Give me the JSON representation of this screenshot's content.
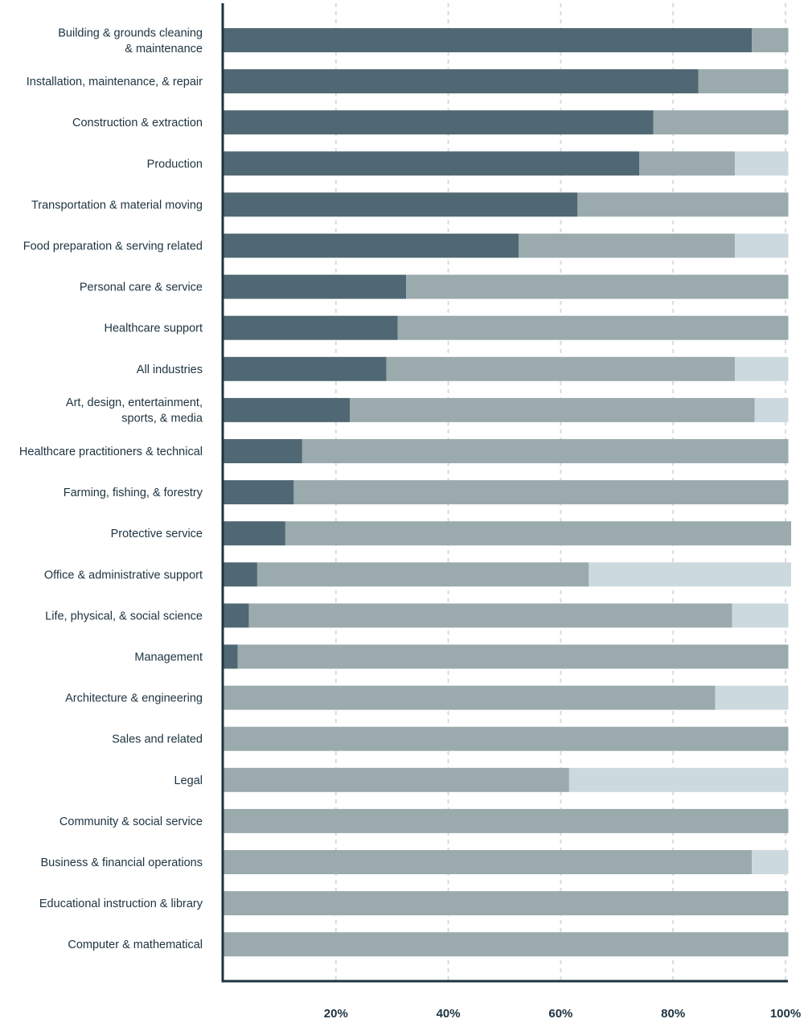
{
  "chart_data": {
    "type": "bar",
    "orientation": "horizontal",
    "stacked": true,
    "title": "",
    "xlabel": "",
    "ylabel": "",
    "xlim": [
      0,
      100
    ],
    "x_ticks": [
      20,
      40,
      60,
      80,
      100
    ],
    "x_tick_labels": [
      "20%",
      "40%",
      "60%",
      "80%",
      "100%"
    ],
    "grid": "vertical dashed",
    "legend": "none",
    "categories": [
      "Building & grounds cleaning\n& maintenance",
      "Installation, maintenance, & repair",
      "Construction & extraction",
      "Production",
      "Transportation & material moving",
      "Food preparation & serving related",
      "Personal care & service",
      "Healthcare support",
      "All industries",
      "Art, design, entertainment,\nsports, & media",
      "Healthcare practitioners & technical",
      "Farming, fishing, & forestry",
      "Protective service",
      "Office & administrative support",
      "Life, physical, &  social science",
      "Management",
      "Architecture & engineering",
      "Sales and related",
      "Legal",
      "Community & social service",
      "Business & financial operations",
      "Educational instruction & library",
      "Computer & mathematical"
    ],
    "series": [
      {
        "color": "#4f6873",
        "values": [
          94,
          84.5,
          76.5,
          74,
          63,
          52.5,
          32.5,
          31,
          29,
          22.5,
          14,
          12.5,
          11,
          6,
          4.5,
          2.5,
          0,
          0,
          0,
          0,
          0,
          0,
          0
        ]
      },
      {
        "color": "#9aaaad",
        "values": [
          6.5,
          16,
          24,
          17,
          37.5,
          38.5,
          68,
          69.5,
          62,
          72,
          86.5,
          88,
          90,
          59,
          86,
          98,
          87.5,
          100.5,
          61.5,
          100.5,
          94,
          100.5,
          100.5
        ]
      },
      {
        "color": "#ccd9de",
        "values": [
          0,
          0,
          0,
          9.5,
          0,
          9.5,
          0,
          0,
          9.5,
          6,
          0,
          0,
          0,
          36,
          10,
          0,
          13,
          0,
          39,
          0,
          6.5,
          0,
          0
        ]
      }
    ]
  }
}
